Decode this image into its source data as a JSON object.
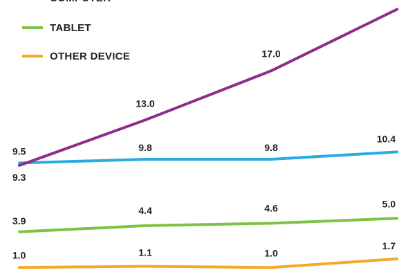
{
  "chart_data": {
    "type": "line",
    "categories": [
      "",
      "",
      "",
      ""
    ],
    "series": [
      {
        "name": "COMPUTER",
        "color": "#29aae1",
        "values": [
          9.5,
          9.8,
          9.8,
          10.4
        ],
        "labels": [
          "9.5",
          "9.8",
          "9.8",
          "10.4"
        ]
      },
      {
        "name": "TABLET",
        "color": "#7dc242",
        "values": [
          3.9,
          4.4,
          4.6,
          5.0
        ],
        "labels": [
          "3.9",
          "4.4",
          "4.6",
          "5.0"
        ]
      },
      {
        "name": "OTHER DEVICE",
        "color": "#f7a823",
        "values": [
          1.0,
          1.1,
          1.0,
          1.7
        ],
        "labels": [
          "1.0",
          "1.1",
          "1.0",
          "1.7"
        ]
      },
      {
        "name": "",
        "color": "#8e2c8e",
        "values": [
          9.3,
          13.0,
          17.0,
          22.0
        ],
        "labels": [
          "9.3",
          "13.0",
          "17.0",
          ""
        ]
      }
    ],
    "legend": [
      "COMPUTER",
      "TABLET",
      "OTHER DEVICE"
    ],
    "legend_position": "top-left",
    "grid": false,
    "ylim": [
      0,
      22
    ]
  }
}
